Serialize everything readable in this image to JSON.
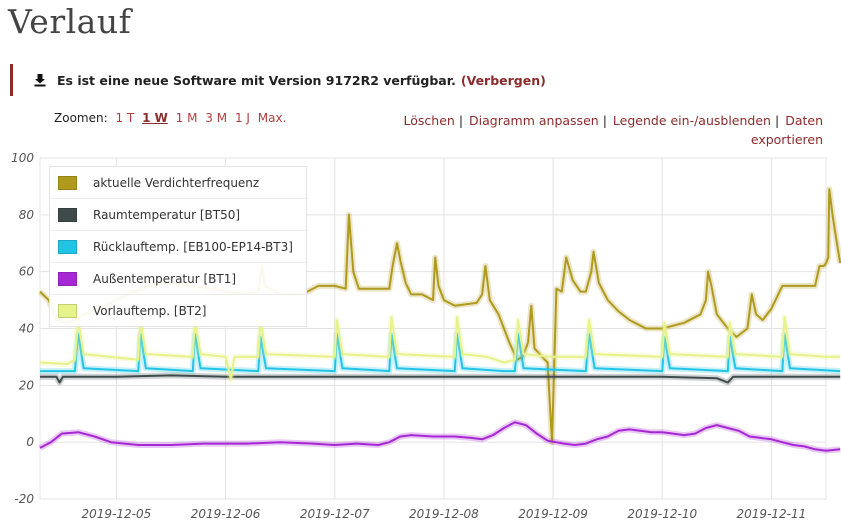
{
  "page": {
    "title": "Verlauf"
  },
  "notice": {
    "message": "Es ist eine neue Software mit Version 9172R2 verfügbar.",
    "hide_label": "(Verbergen)",
    "icon": "download-icon"
  },
  "zoom": {
    "label": "Zoomen:",
    "options": [
      {
        "label": "1 T",
        "active": false
      },
      {
        "label": "1 W",
        "active": true
      },
      {
        "label": "1 M",
        "active": false
      },
      {
        "label": "3 M",
        "active": false
      },
      {
        "label": "1 J",
        "active": false
      },
      {
        "label": "Max.",
        "active": false
      }
    ]
  },
  "actions": {
    "clear": "Löschen",
    "adjust": "Diagramm anpassen",
    "legend_toggle": "Legende ein-/ausblenden",
    "export": "Daten exportieren"
  },
  "chart_data": {
    "type": "line",
    "ylim": [
      -20,
      100
    ],
    "y_ticks": [
      -20,
      0,
      20,
      40,
      60,
      80,
      100
    ],
    "xlim": [
      -0.7,
      6.5
    ],
    "x_ticks": [
      {
        "value": 0,
        "label": "2019-12-05"
      },
      {
        "value": 1,
        "label": "2019-12-06"
      },
      {
        "value": 2,
        "label": "2019-12-07"
      },
      {
        "value": 3,
        "label": "2019-12-08"
      },
      {
        "value": 4,
        "label": "2019-12-09"
      },
      {
        "value": 5,
        "label": "2019-12-10"
      },
      {
        "value": 6,
        "label": "2019-12-11"
      }
    ],
    "grid": true,
    "legend_position": "top-left",
    "series": [
      {
        "name": "aktuelle Verdichterfrequenz",
        "color": "#b09a1e",
        "points": [
          [
            -0.7,
            53
          ],
          [
            -0.62,
            50
          ],
          [
            -0.55,
            43
          ],
          [
            -0.45,
            42
          ],
          [
            -0.3,
            45
          ],
          [
            -0.1,
            48
          ],
          [
            0.1,
            52
          ],
          [
            0.3,
            55
          ],
          [
            0.5,
            56
          ],
          [
            0.7,
            55
          ],
          [
            0.9,
            54
          ],
          [
            1.0,
            53
          ],
          [
            1.2,
            52
          ],
          [
            1.3,
            53
          ],
          [
            1.33,
            62
          ],
          [
            1.36,
            55
          ],
          [
            1.5,
            52
          ],
          [
            1.7,
            52
          ],
          [
            1.85,
            55
          ],
          [
            2.0,
            55
          ],
          [
            2.1,
            54
          ],
          [
            2.13,
            80
          ],
          [
            2.17,
            60
          ],
          [
            2.22,
            54
          ],
          [
            2.4,
            54
          ],
          [
            2.5,
            54
          ],
          [
            2.53,
            62
          ],
          [
            2.57,
            70
          ],
          [
            2.6,
            64
          ],
          [
            2.65,
            56
          ],
          [
            2.7,
            52
          ],
          [
            2.8,
            52
          ],
          [
            2.9,
            50
          ],
          [
            2.92,
            65
          ],
          [
            2.95,
            55
          ],
          [
            3.0,
            50
          ],
          [
            3.1,
            48
          ],
          [
            3.3,
            49
          ],
          [
            3.35,
            52
          ],
          [
            3.38,
            62
          ],
          [
            3.42,
            50
          ],
          [
            3.5,
            45
          ],
          [
            3.6,
            35
          ],
          [
            3.67,
            29
          ],
          [
            3.72,
            30
          ],
          [
            3.77,
            35
          ],
          [
            3.8,
            48
          ],
          [
            3.83,
            33
          ],
          [
            3.9,
            30
          ],
          [
            3.95,
            28
          ],
          [
            3.99,
            0
          ],
          [
            4.03,
            54
          ],
          [
            4.08,
            53
          ],
          [
            4.12,
            65
          ],
          [
            4.18,
            57
          ],
          [
            4.25,
            53
          ],
          [
            4.3,
            53
          ],
          [
            4.35,
            60
          ],
          [
            4.37,
            67
          ],
          [
            4.42,
            56
          ],
          [
            4.5,
            50
          ],
          [
            4.6,
            46
          ],
          [
            4.7,
            43
          ],
          [
            4.85,
            40
          ],
          [
            5.0,
            40
          ],
          [
            5.2,
            42
          ],
          [
            5.35,
            45
          ],
          [
            5.4,
            50
          ],
          [
            5.42,
            60
          ],
          [
            5.45,
            55
          ],
          [
            5.5,
            45
          ],
          [
            5.6,
            40
          ],
          [
            5.68,
            37
          ],
          [
            5.78,
            40
          ],
          [
            5.82,
            52
          ],
          [
            5.86,
            45
          ],
          [
            5.92,
            43
          ],
          [
            6.0,
            47
          ],
          [
            6.1,
            55
          ],
          [
            6.25,
            55
          ],
          [
            6.4,
            55
          ],
          [
            6.44,
            62
          ],
          [
            6.48,
            62
          ],
          [
            6.5,
            63
          ],
          [
            6.52,
            65
          ],
          [
            6.53,
            89
          ],
          [
            6.56,
            80
          ],
          [
            6.6,
            70
          ],
          [
            6.63,
            63
          ]
        ]
      },
      {
        "name": "Raumtemperatur [BT50]",
        "color": "#3f4b4a",
        "points": [
          [
            -0.7,
            23
          ],
          [
            -0.55,
            23
          ],
          [
            -0.52,
            21
          ],
          [
            -0.49,
            23
          ],
          [
            0,
            23
          ],
          [
            0.5,
            23.5
          ],
          [
            1,
            23
          ],
          [
            1.5,
            23
          ],
          [
            2,
            23
          ],
          [
            2.5,
            23
          ],
          [
            3,
            23
          ],
          [
            3.5,
            23
          ],
          [
            4,
            23
          ],
          [
            4.5,
            23
          ],
          [
            5,
            23
          ],
          [
            5.5,
            22.5
          ],
          [
            5.6,
            21
          ],
          [
            5.65,
            23
          ],
          [
            6,
            23
          ],
          [
            6.5,
            23
          ],
          [
            6.63,
            23
          ]
        ]
      },
      {
        "name": "Rücklauftemp. [EB100-EP14-BT3]",
        "color": "#22c4e6",
        "points": [
          [
            -0.7,
            25
          ],
          [
            -0.38,
            25
          ],
          [
            -0.35,
            38
          ],
          [
            -0.3,
            26
          ],
          [
            0.2,
            25
          ],
          [
            0.22,
            38
          ],
          [
            0.27,
            26
          ],
          [
            0.7,
            25
          ],
          [
            0.72,
            38
          ],
          [
            0.77,
            26
          ],
          [
            1.3,
            25
          ],
          [
            1.32,
            37
          ],
          [
            1.37,
            26
          ],
          [
            2.0,
            25
          ],
          [
            2.02,
            38
          ],
          [
            2.07,
            26
          ],
          [
            2.5,
            25
          ],
          [
            2.52,
            38
          ],
          [
            2.57,
            26
          ],
          [
            3.1,
            25
          ],
          [
            3.12,
            38
          ],
          [
            3.17,
            26
          ],
          [
            3.55,
            25
          ],
          [
            3.65,
            25
          ],
          [
            3.68,
            38
          ],
          [
            3.73,
            26
          ],
          [
            4.3,
            25
          ],
          [
            4.33,
            38
          ],
          [
            4.38,
            26
          ],
          [
            5.0,
            25
          ],
          [
            5.02,
            37
          ],
          [
            5.07,
            26
          ],
          [
            5.6,
            25
          ],
          [
            5.62,
            37
          ],
          [
            5.67,
            26
          ],
          [
            6.1,
            25
          ],
          [
            6.12,
            38
          ],
          [
            6.17,
            26
          ],
          [
            6.63,
            25
          ]
        ]
      },
      {
        "name": "Außentemperatur [BT1]",
        "color": "#a628d4",
        "points": [
          [
            -0.7,
            -2
          ],
          [
            -0.6,
            0
          ],
          [
            -0.5,
            3
          ],
          [
            -0.35,
            3.5
          ],
          [
            -0.2,
            2
          ],
          [
            -0.05,
            0
          ],
          [
            0.2,
            -1
          ],
          [
            0.5,
            -1
          ],
          [
            0.8,
            -0.5
          ],
          [
            1.0,
            -0.5
          ],
          [
            1.2,
            -0.5
          ],
          [
            1.5,
            0
          ],
          [
            1.8,
            -0.5
          ],
          [
            2.0,
            -1
          ],
          [
            2.2,
            -0.5
          ],
          [
            2.4,
            -1
          ],
          [
            2.5,
            0
          ],
          [
            2.6,
            2
          ],
          [
            2.7,
            2.5
          ],
          [
            2.9,
            2
          ],
          [
            3.1,
            2
          ],
          [
            3.25,
            1.5
          ],
          [
            3.35,
            1
          ],
          [
            3.45,
            2.5
          ],
          [
            3.55,
            5
          ],
          [
            3.65,
            7
          ],
          [
            3.75,
            6
          ],
          [
            3.85,
            3
          ],
          [
            3.95,
            0.5
          ],
          [
            4.1,
            -0.5
          ],
          [
            4.2,
            -1
          ],
          [
            4.3,
            -0.5
          ],
          [
            4.4,
            1
          ],
          [
            4.5,
            2
          ],
          [
            4.6,
            4
          ],
          [
            4.7,
            4.5
          ],
          [
            4.8,
            4
          ],
          [
            4.9,
            3.5
          ],
          [
            5.0,
            3.5
          ],
          [
            5.1,
            3
          ],
          [
            5.2,
            2.5
          ],
          [
            5.3,
            3
          ],
          [
            5.4,
            5
          ],
          [
            5.5,
            6
          ],
          [
            5.6,
            5
          ],
          [
            5.7,
            4
          ],
          [
            5.8,
            2
          ],
          [
            5.9,
            1.5
          ],
          [
            6.0,
            1
          ],
          [
            6.1,
            0
          ],
          [
            6.2,
            -1
          ],
          [
            6.3,
            -1.5
          ],
          [
            6.4,
            -2.5
          ],
          [
            6.5,
            -3
          ],
          [
            6.63,
            -2.5
          ]
        ]
      },
      {
        "name": "Vorlauftemp. [BT2]",
        "color": "#e6f28a",
        "points": [
          [
            -0.7,
            28
          ],
          [
            -0.45,
            27.5
          ],
          [
            -0.38,
            29
          ],
          [
            -0.35,
            43
          ],
          [
            -0.3,
            31
          ],
          [
            0.2,
            29
          ],
          [
            0.22,
            43
          ],
          [
            0.27,
            31
          ],
          [
            0.7,
            30
          ],
          [
            0.72,
            43
          ],
          [
            0.77,
            31
          ],
          [
            1.0,
            30
          ],
          [
            1.05,
            22
          ],
          [
            1.08,
            30
          ],
          [
            1.3,
            30
          ],
          [
            1.32,
            43
          ],
          [
            1.37,
            31
          ],
          [
            2.0,
            30
          ],
          [
            2.02,
            43
          ],
          [
            2.07,
            31
          ],
          [
            2.5,
            30
          ],
          [
            2.52,
            44
          ],
          [
            2.57,
            31
          ],
          [
            3.1,
            30
          ],
          [
            3.12,
            44
          ],
          [
            3.17,
            31
          ],
          [
            3.4,
            30
          ],
          [
            3.55,
            28
          ],
          [
            3.65,
            29
          ],
          [
            3.68,
            43
          ],
          [
            3.73,
            31
          ],
          [
            4.0,
            30
          ],
          [
            4.3,
            30
          ],
          [
            4.33,
            43
          ],
          [
            4.38,
            31
          ],
          [
            5.0,
            30
          ],
          [
            5.02,
            42
          ],
          [
            5.07,
            31
          ],
          [
            5.6,
            30
          ],
          [
            5.62,
            42
          ],
          [
            5.67,
            31
          ],
          [
            6.1,
            30
          ],
          [
            6.12,
            44
          ],
          [
            6.17,
            31
          ],
          [
            6.5,
            30
          ],
          [
            6.63,
            30
          ]
        ]
      }
    ]
  }
}
